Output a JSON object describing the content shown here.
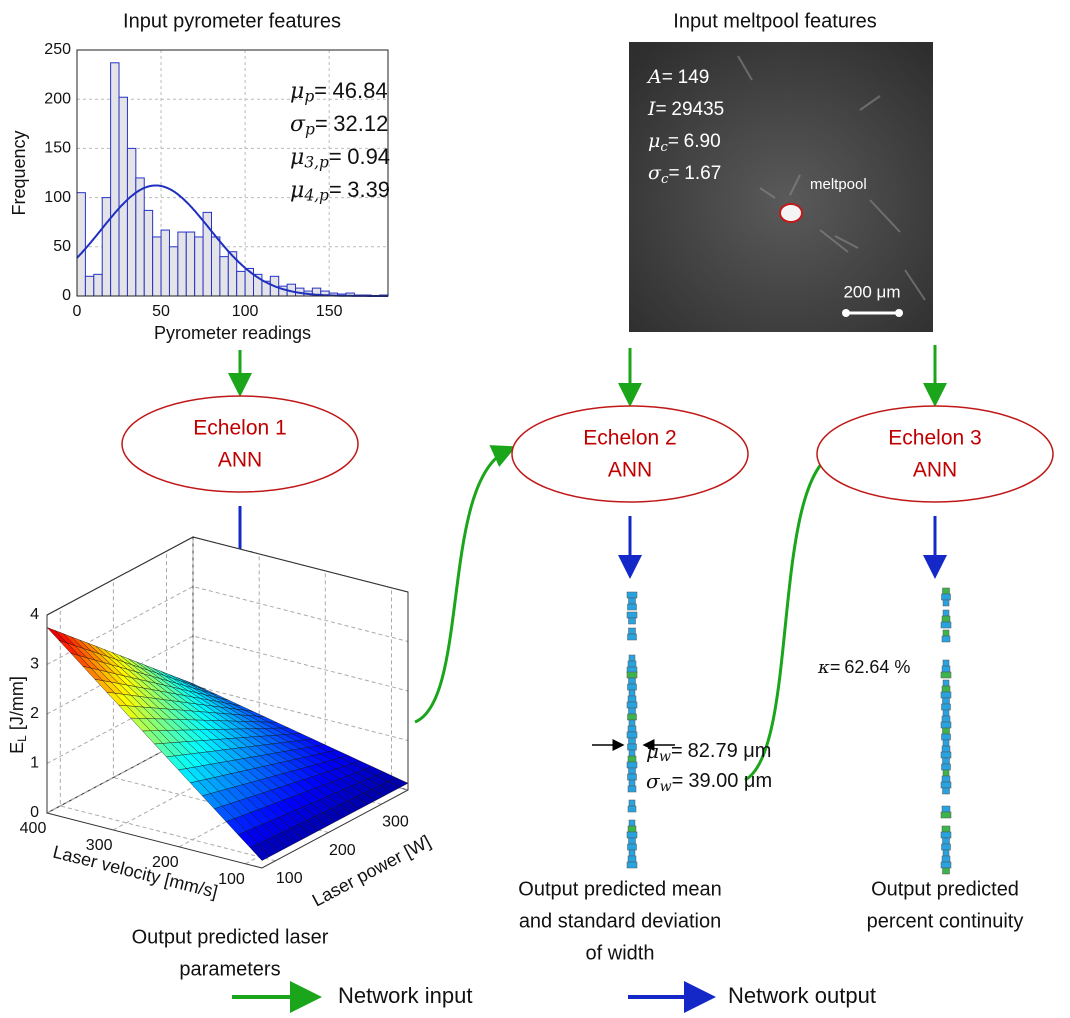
{
  "pyrometer_panel": {
    "title": "Input pyrometer features",
    "histogram": {
      "type": "histogram",
      "bins": [
        0,
        5,
        10,
        15,
        20,
        25,
        30,
        35,
        40,
        45,
        50,
        55,
        60,
        65,
        70,
        75,
        80,
        85,
        90,
        95,
        100,
        105,
        110,
        115,
        120,
        125,
        130,
        135,
        140,
        145,
        150,
        155,
        160,
        165,
        170,
        175,
        180,
        185
      ],
      "counts": [
        105,
        20,
        22,
        100,
        237,
        202,
        150,
        120,
        87,
        60,
        67,
        50,
        65,
        65,
        60,
        85,
        60,
        40,
        45,
        25,
        28,
        22,
        15,
        20,
        10,
        12,
        8,
        5,
        8,
        5,
        3,
        2,
        3,
        1,
        1,
        0,
        1
      ],
      "xlim": [
        0,
        185
      ],
      "ylim": [
        0,
        250
      ],
      "xticks": [
        0,
        50,
        100,
        150
      ],
      "yticks": [
        0,
        50,
        100,
        150,
        200,
        250
      ],
      "xlabel": "Pyrometer readings",
      "ylabel": "Frequency",
      "grid": true,
      "bar_color": "#2633c4",
      "bar_fill": "#e4e4e8",
      "fit_color": "#1f2fbf"
    },
    "stats": {
      "relation": "=",
      "items": [
        {
          "symbol": "μ",
          "sub": "p",
          "value": 46.84
        },
        {
          "symbol": "σ",
          "sub": "p",
          "value": 32.12
        },
        {
          "symbol": "μ",
          "sub": "3,p",
          "value": 0.94
        },
        {
          "symbol": "μ",
          "sub": "4,p",
          "value": 3.39
        }
      ]
    }
  },
  "meltpool_panel": {
    "title": "Input meltpool features",
    "stats": {
      "relation": "=",
      "items": [
        {
          "symbol": "A",
          "value": "149"
        },
        {
          "symbol": "I",
          "value": "29435"
        },
        {
          "symbol": "μ",
          "sub": "c",
          "value": "6.90"
        },
        {
          "symbol": "σ",
          "sub": "c",
          "value": "1.67"
        }
      ]
    },
    "meltpool_label": "meltpool",
    "scale_bar": "200 μm"
  },
  "nodes": [
    {
      "label": [
        "Echelon 1",
        "ANN"
      ]
    },
    {
      "label": [
        "Echelon 2",
        "ANN"
      ]
    },
    {
      "label": [
        "Echelon 3",
        "ANN"
      ]
    }
  ],
  "laser_panel": {
    "surface_plot": {
      "z_label": {
        "main": "E",
        "sub": "L",
        "rest": " [J/mm]"
      },
      "zlim": [
        0,
        4
      ],
      "zticks": [
        0,
        1,
        2,
        3,
        4
      ],
      "velocity_label": "Laser velocity [mm/s]",
      "velocity_lim": [
        400,
        75
      ],
      "velocity_ticks": [
        400,
        300,
        200,
        100
      ],
      "power_label": "Laser power [W]",
      "power_lim": [
        75,
        350
      ],
      "power_ticks": [
        100,
        200,
        300
      ]
    },
    "caption": [
      "Output predicted laser",
      "parameters"
    ]
  },
  "width_panel": {
    "stats": {
      "relation": "=",
      "items": [
        {
          "symbol": "μ",
          "sub": "w",
          "value": "82.79 μm"
        },
        {
          "symbol": "σ",
          "sub": "w",
          "value": "39.00 μm"
        }
      ]
    },
    "caption": [
      "Output predicted mean",
      "and standard deviation",
      "of width"
    ]
  },
  "continuity_panel": {
    "kappa": {
      "symbol": "κ",
      "relation": "=",
      "value": "62.64 %"
    },
    "caption": [
      "Output predicted",
      "percent continuity"
    ]
  },
  "legend": [
    {
      "label": "Network input",
      "color": "#1aa51a"
    },
    {
      "label": "Network output",
      "color": "#1428c8"
    }
  ]
}
